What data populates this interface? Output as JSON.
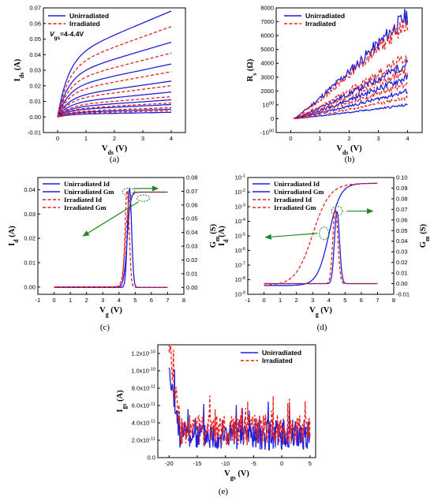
{
  "colors": {
    "unirradiated": "#1f1fdc",
    "irradiated": "#e8201c",
    "arrow": "#1e8a1e"
  },
  "chart_data": [
    {
      "id": "a",
      "panel_label": "(a)",
      "type": "line",
      "ylabel": "I_ds (A)",
      "xlabel": "V_ds (V)",
      "xlim": [
        -0.5,
        4.5
      ],
      "ylim": [
        -0.01,
        0.07
      ],
      "xticks": [
        "0",
        "1",
        "2",
        "3",
        "4"
      ],
      "yticks": [
        "-0.01",
        "0.00",
        "0.01",
        "0.02",
        "0.03",
        "0.04",
        "0.05",
        "0.06",
        "0.07"
      ],
      "legend": [
        "Unirradiated",
        "Irradiated"
      ],
      "annotation": "V_gs=4-4.4V",
      "series": [
        {
          "name": "Unirradiated",
          "x": [
            0,
            4
          ],
          "y": [
            0,
            0.068
          ]
        },
        {
          "name": "Unirradiated",
          "x": [
            0,
            4
          ],
          "y": [
            0,
            0.048
          ]
        },
        {
          "name": "Unirradiated",
          "x": [
            0,
            4
          ],
          "y": [
            0,
            0.034
          ]
        },
        {
          "name": "Unirradiated",
          "x": [
            0,
            4
          ],
          "y": [
            0,
            0.023
          ]
        },
        {
          "name": "Unirradiated",
          "x": [
            0,
            4
          ],
          "y": [
            0,
            0.016
          ]
        },
        {
          "name": "Unirradiated",
          "x": [
            0,
            4
          ],
          "y": [
            0,
            0.011
          ]
        },
        {
          "name": "Unirradiated",
          "x": [
            0,
            4
          ],
          "y": [
            0,
            0.008
          ]
        },
        {
          "name": "Unirradiated",
          "x": [
            0,
            4
          ],
          "y": [
            0,
            0.005
          ]
        },
        {
          "name": "Unirradiated",
          "x": [
            0,
            4
          ],
          "y": [
            0,
            0.003
          ]
        },
        {
          "name": "Irradiated",
          "x": [
            0,
            4
          ],
          "y": [
            0,
            0.058
          ]
        },
        {
          "name": "Irradiated",
          "x": [
            0,
            4
          ],
          "y": [
            0,
            0.041
          ]
        },
        {
          "name": "Irradiated",
          "x": [
            0,
            4
          ],
          "y": [
            0,
            0.029
          ]
        },
        {
          "name": "Irradiated",
          "x": [
            0,
            4
          ],
          "y": [
            0,
            0.02
          ]
        },
        {
          "name": "Irradiated",
          "x": [
            0,
            4
          ],
          "y": [
            0,
            0.013
          ]
        },
        {
          "name": "Irradiated",
          "x": [
            0,
            4
          ],
          "y": [
            0,
            0.009
          ]
        },
        {
          "name": "Irradiated",
          "x": [
            0,
            4
          ],
          "y": [
            0,
            0.006
          ]
        },
        {
          "name": "Irradiated",
          "x": [
            0,
            4
          ],
          "y": [
            0,
            0.004
          ]
        }
      ]
    },
    {
      "id": "b",
      "panel_label": "(b)",
      "type": "line",
      "ylabel": "R_s (Ω)",
      "xlabel": "V_ds (V)",
      "xlim": [
        -0.5,
        4.5
      ],
      "ylim": [
        -1000,
        8000
      ],
      "xticks": [
        "0",
        "1",
        "2",
        "3",
        "4"
      ],
      "yticks": [
        "-1000",
        "0",
        "1000",
        "2000",
        "3000",
        "4000",
        "5000",
        "6000",
        "7000",
        "8000"
      ],
      "legend": [
        "Unirradiated",
        "Irradiated"
      ],
      "series": [
        {
          "name": "Unirradiated",
          "x": [
            0.1,
            4
          ],
          "y": [
            0,
            7500
          ]
        },
        {
          "name": "Unirradiated",
          "x": [
            0.1,
            4
          ],
          "y": [
            0,
            4000
          ]
        },
        {
          "name": "Unirradiated",
          "x": [
            0.1,
            4
          ],
          "y": [
            0,
            3000
          ]
        },
        {
          "name": "Unirradiated",
          "x": [
            0.1,
            4
          ],
          "y": [
            0,
            2000
          ]
        },
        {
          "name": "Unirradiated",
          "x": [
            0.1,
            4
          ],
          "y": [
            0,
            1000
          ]
        },
        {
          "name": "Irradiated",
          "x": [
            0.1,
            4
          ],
          "y": [
            0,
            7000
          ]
        },
        {
          "name": "Irradiated",
          "x": [
            0.1,
            4
          ],
          "y": [
            0,
            4500
          ]
        },
        {
          "name": "Irradiated",
          "x": [
            0.1,
            4
          ],
          "y": [
            0,
            3500
          ]
        },
        {
          "name": "Irradiated",
          "x": [
            0.1,
            4
          ],
          "y": [
            0,
            2500
          ]
        },
        {
          "name": "Irradiated",
          "x": [
            0.1,
            4
          ],
          "y": [
            0,
            1500
          ]
        }
      ]
    },
    {
      "id": "c",
      "panel_label": "(c)",
      "type": "line",
      "ylabel": "I_d (A)",
      "xlabel": "V_g (V)",
      "y2label": "G_m (S)",
      "xlim": [
        -1,
        8
      ],
      "ylim": [
        -0.003,
        0.045
      ],
      "y2lim": [
        -0.005,
        0.08
      ],
      "xticks": [
        "-1",
        "0",
        "1",
        "2",
        "3",
        "4",
        "5",
        "6",
        "7",
        "8"
      ],
      "yticks": [
        "0.00",
        "0.01",
        "0.02",
        "0.03",
        "0.04"
      ],
      "y2ticks": [
        "0.00",
        "0.01",
        "0.02",
        "0.03",
        "0.04",
        "0.05",
        "0.06",
        "0.07",
        "0.08"
      ],
      "legend": [
        "Unirradiated Id",
        "Unirradiated Gm",
        "Irradiated Id",
        "Irradiated Gm"
      ],
      "series": [
        {
          "name": "Unirradiated Id",
          "x": [
            0,
            4.0,
            4.5,
            5.0,
            7
          ],
          "y": [
            0,
            0.001,
            0.03,
            0.039,
            0.039
          ]
        },
        {
          "name": "Unirradiated Gm",
          "x": [
            0,
            4.0,
            4.65,
            5.3,
            7
          ],
          "y": [
            0,
            0.001,
            0.072,
            0.001,
            0
          ]
        },
        {
          "name": "Irradiated Id",
          "x": [
            0,
            3.9,
            4.4,
            4.9,
            7
          ],
          "y": [
            0,
            0.001,
            0.03,
            0.039,
            0.039
          ]
        },
        {
          "name": "Irradiated Gm",
          "x": [
            0,
            3.9,
            4.5,
            5.2,
            7
          ],
          "y": [
            0,
            0.001,
            0.071,
            0.001,
            0
          ]
        }
      ]
    },
    {
      "id": "d",
      "panel_label": "(d)",
      "type": "line",
      "ylabel": "I_d (A)",
      "xlabel": "V_g (V)",
      "y2label": "G_m (S)",
      "yscale": "log",
      "xlim": [
        -1,
        8
      ],
      "ylim": [
        1e-09,
        0.1
      ],
      "y2lim": [
        -0.01,
        0.1
      ],
      "xticks": [
        "-1",
        "0",
        "1",
        "2",
        "3",
        "4",
        "5",
        "6",
        "7",
        "8"
      ],
      "yticks": [
        "10-9",
        "10-8",
        "10-7",
        "10-6",
        "10-5",
        "10-4",
        "10-3",
        "10-2",
        "10-1"
      ],
      "y2ticks": [
        "-0.01",
        "0.00",
        "0.01",
        "0.02",
        "0.03",
        "0.04",
        "0.05",
        "0.06",
        "0.07",
        "0.08",
        "0.09",
        "0.10"
      ],
      "legend": [
        "Unirradiated Id",
        "Unirradiated Gm",
        "Irradiated Id",
        "Irradiated Gm"
      ],
      "series": [
        {
          "name": "Unirradiated Id",
          "x": [
            0,
            3.0,
            4.0,
            5.0,
            7
          ],
          "y": [
            4e-09,
            5e-09,
            1e-05,
            0.04,
            0.04
          ]
        },
        {
          "name": "Unirradiated Gm",
          "x": [
            0,
            4.0,
            4.5,
            5.0,
            7
          ],
          "y": [
            0,
            0.002,
            0.068,
            0.002,
            0
          ]
        },
        {
          "name": "Irradiated Id",
          "x": [
            0,
            2.0,
            3.0,
            4.5,
            7
          ],
          "y": [
            4e-09,
            5e-09,
            1e-06,
            0.04,
            0.04
          ]
        },
        {
          "name": "Irradiated Gm",
          "x": [
            0,
            3.8,
            4.4,
            5.0,
            7
          ],
          "y": [
            0,
            0.002,
            0.07,
            0.002,
            0
          ]
        }
      ]
    },
    {
      "id": "e",
      "panel_label": "(e)",
      "type": "line",
      "ylabel": "I_gs (A)",
      "xlabel": "V_gs (V)",
      "xlim": [
        -22,
        6
      ],
      "ylim": [
        0,
        1.3e-10
      ],
      "xticks": [
        "-20",
        "-15",
        "-10",
        "-5",
        "0",
        "5"
      ],
      "yticks": [
        "0.0",
        "2.0x10-11",
        "4.0x10-11",
        "6.0x10-11",
        "8.0x10-11",
        "1.0x10-10",
        "1.2x10-10"
      ],
      "legend": [
        "Unirradiated",
        "Irradiated"
      ],
      "series": [
        {
          "name": "Unirradiated",
          "x": [
            -20,
            -15,
            -10,
            -5,
            0,
            5
          ],
          "y": [
            9e-11,
            2.5e-11,
            2.5e-11,
            2.5e-11,
            2.5e-11,
            2.5e-11
          ]
        },
        {
          "name": "Irradiated",
          "x": [
            -20,
            -15,
            -10,
            -5,
            0,
            5
          ],
          "y": [
            1.2e-10,
            3e-11,
            3e-11,
            3e-11,
            3e-11,
            3e-11
          ]
        }
      ]
    }
  ]
}
